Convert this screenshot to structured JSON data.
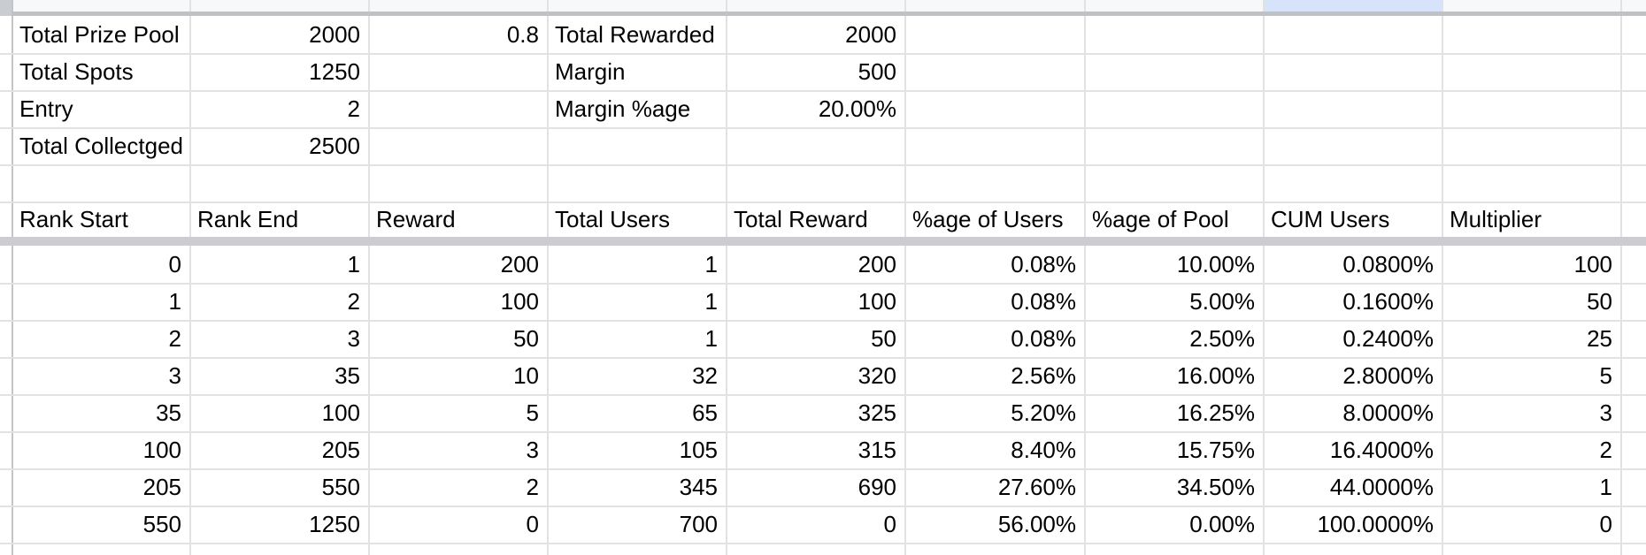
{
  "colors": {
    "selected_column_highlight": "#d7e3fb",
    "gridline": "#e2e2e2",
    "frozen_divider": "#cbcdd0",
    "header_strip_background": "#f7f8f9"
  },
  "summary": {
    "left": {
      "rows": [
        {
          "label": "Total Prize Pool",
          "value": "2000",
          "aux": "0.8"
        },
        {
          "label": "Total Spots",
          "value": "1250"
        },
        {
          "label": "Entry",
          "value": "2"
        },
        {
          "label": "Total Collectged",
          "value": "2500"
        }
      ]
    },
    "right": {
      "rows": [
        {
          "label": "Total Rewarded",
          "value": "2000"
        },
        {
          "label": "Margin",
          "value": "500"
        },
        {
          "label": "Margin %age",
          "value": "20.00%"
        }
      ]
    }
  },
  "table": {
    "headers": [
      "Rank Start",
      "Rank End",
      "Reward",
      "Total Users",
      "Total Reward",
      "%age of Users",
      "%age of Pool",
      "CUM Users",
      "Multiplier"
    ],
    "rows": [
      [
        "0",
        "1",
        "200",
        "1",
        "200",
        "0.08%",
        "10.00%",
        "0.0800%",
        "100"
      ],
      [
        "1",
        "2",
        "100",
        "1",
        "100",
        "0.08%",
        "5.00%",
        "0.1600%",
        "50"
      ],
      [
        "2",
        "3",
        "50",
        "1",
        "50",
        "0.08%",
        "2.50%",
        "0.2400%",
        "25"
      ],
      [
        "3",
        "35",
        "10",
        "32",
        "320",
        "2.56%",
        "16.00%",
        "2.8000%",
        "5"
      ],
      [
        "35",
        "100",
        "5",
        "65",
        "325",
        "5.20%",
        "16.25%",
        "8.0000%",
        "3"
      ],
      [
        "100",
        "205",
        "3",
        "105",
        "315",
        "8.40%",
        "15.75%",
        "16.4000%",
        "2"
      ],
      [
        "205",
        "550",
        "2",
        "345",
        "690",
        "27.60%",
        "34.50%",
        "44.0000%",
        "1"
      ],
      [
        "550",
        "1250",
        "0",
        "700",
        "0",
        "56.00%",
        "0.00%",
        "100.0000%",
        "0"
      ]
    ]
  }
}
